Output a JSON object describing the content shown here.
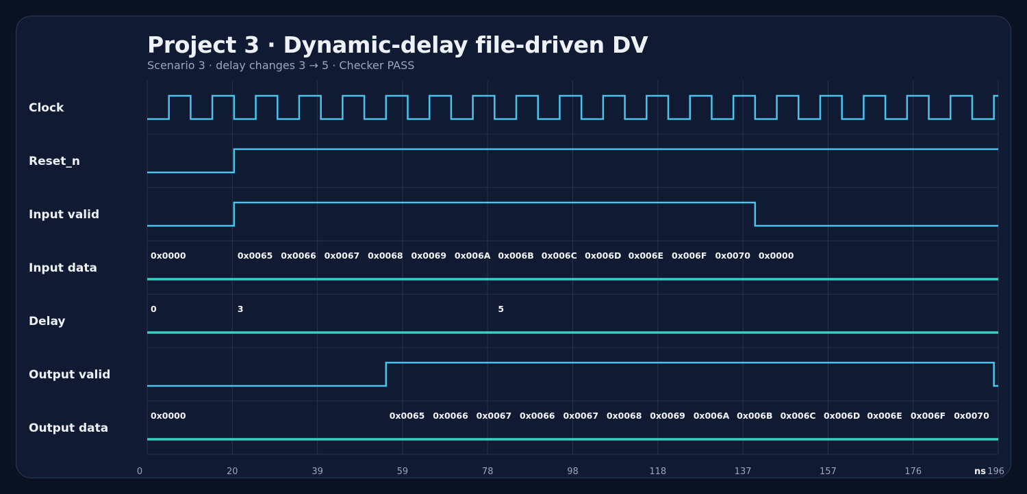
{
  "header": {
    "title": "Project 3 · Dynamic-delay file-driven DV",
    "subtitle": "Scenario 3 · delay changes 3 → 5 · Checker PASS"
  },
  "colors": {
    "background": "#0b1322",
    "panel": "#101a33",
    "panel_border": "#2a3954",
    "grid": "#26344f",
    "logic_trace": "#4cc3ec",
    "bus_trace": "#33d1c2",
    "text": "#eef2f8",
    "muted_text": "#9aa7bb"
  },
  "timeline": {
    "start": 0,
    "end": 196,
    "unit": "ns",
    "ticks": [
      {
        "value": 0,
        "label": "0"
      },
      {
        "value": 19.6,
        "label": "20"
      },
      {
        "value": 39.2,
        "label": "39"
      },
      {
        "value": 58.8,
        "label": "59"
      },
      {
        "value": 78.4,
        "label": "78"
      },
      {
        "value": 98,
        "label": "98"
      },
      {
        "value": 117.6,
        "label": "118"
      },
      {
        "value": 137.2,
        "label": "137"
      },
      {
        "value": 156.8,
        "label": "157"
      },
      {
        "value": 176.4,
        "label": "176"
      },
      {
        "value": 196,
        "label": "196"
      }
    ]
  },
  "signals": [
    {
      "name": "Clock",
      "type": "clock",
      "period": 10,
      "first_rise": 5
    },
    {
      "name": "Reset_n",
      "type": "logic",
      "initial": 0,
      "transitions": [
        {
          "t": 20,
          "v": 1
        }
      ]
    },
    {
      "name": "Input valid",
      "type": "logic",
      "initial": 0,
      "transitions": [
        {
          "t": 20,
          "v": 1
        },
        {
          "t": 140,
          "v": 0
        }
      ]
    },
    {
      "name": "Input data",
      "type": "bus",
      "values": [
        {
          "t": 0,
          "label": "0x0000"
        },
        {
          "t": 20,
          "label": "0x0065"
        },
        {
          "t": 30,
          "label": "0x0066"
        },
        {
          "t": 40,
          "label": "0x0067"
        },
        {
          "t": 50,
          "label": "0x0068"
        },
        {
          "t": 60,
          "label": "0x0069"
        },
        {
          "t": 70,
          "label": "0x006A"
        },
        {
          "t": 80,
          "label": "0x006B"
        },
        {
          "t": 90,
          "label": "0x006C"
        },
        {
          "t": 100,
          "label": "0x006D"
        },
        {
          "t": 110,
          "label": "0x006E"
        },
        {
          "t": 120,
          "label": "0x006F"
        },
        {
          "t": 130,
          "label": "0x0070"
        },
        {
          "t": 140,
          "label": "0x0000"
        }
      ]
    },
    {
      "name": "Delay",
      "type": "bus",
      "values": [
        {
          "t": 0,
          "label": "0"
        },
        {
          "t": 20,
          "label": "3"
        },
        {
          "t": 80,
          "label": "5"
        }
      ]
    },
    {
      "name": "Output valid",
      "type": "logic",
      "initial": 0,
      "transitions": [
        {
          "t": 55,
          "v": 1
        },
        {
          "t": 195,
          "v": 0
        }
      ]
    },
    {
      "name": "Output data",
      "type": "bus",
      "values": [
        {
          "t": 0,
          "label": "0x0000"
        },
        {
          "t": 55,
          "label": "0x0065"
        },
        {
          "t": 65,
          "label": "0x0066"
        },
        {
          "t": 75,
          "label": "0x0067"
        },
        {
          "t": 85,
          "label": "0x0066"
        },
        {
          "t": 95,
          "label": "0x0067"
        },
        {
          "t": 105,
          "label": "0x0068"
        },
        {
          "t": 115,
          "label": "0x0069"
        },
        {
          "t": 125,
          "label": "0x006A"
        },
        {
          "t": 135,
          "label": "0x006B"
        },
        {
          "t": 145,
          "label": "0x006C"
        },
        {
          "t": 155,
          "label": "0x006D"
        },
        {
          "t": 165,
          "label": "0x006E"
        },
        {
          "t": 175,
          "label": "0x006F"
        },
        {
          "t": 185,
          "label": "0x0070"
        }
      ]
    }
  ]
}
